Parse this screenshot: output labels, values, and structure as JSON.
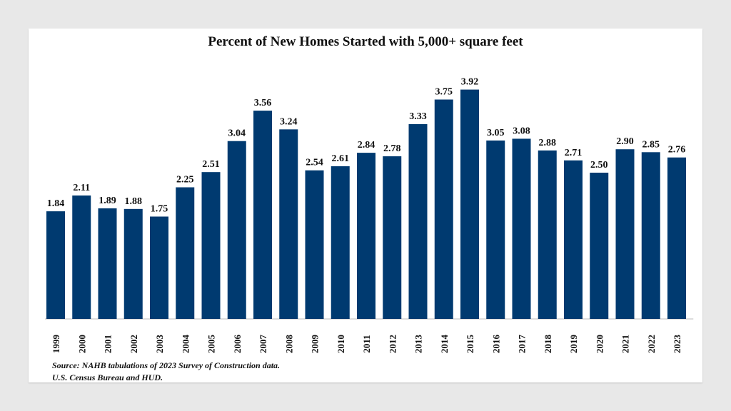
{
  "chart_data": {
    "type": "bar",
    "title": "Percent of New Homes Started with 5,000+ square  feet",
    "categories": [
      "1999",
      "2000",
      "2001",
      "2002",
      "2003",
      "2004",
      "2005",
      "2006",
      "2007",
      "2008",
      "2009",
      "2010",
      "2011",
      "2012",
      "2013",
      "2014",
      "2015",
      "2016",
      "2017",
      "2018",
      "2019",
      "2020",
      "2021",
      "2022",
      "2023"
    ],
    "values": [
      1.84,
      2.11,
      1.89,
      1.88,
      1.75,
      2.25,
      2.51,
      3.04,
      3.56,
      3.24,
      2.54,
      2.61,
      2.84,
      2.78,
      3.33,
      3.75,
      3.92,
      3.05,
      3.08,
      2.88,
      2.71,
      2.5,
      2.9,
      2.85,
      2.76
    ],
    "value_labels": [
      "1.84",
      "2.11",
      "1.89",
      "1.88",
      "1.75",
      "2.25",
      "2.51",
      "3.04",
      "3.56",
      "3.24",
      "2.54",
      "2.61",
      "2.84",
      "2.78",
      "3.33",
      "3.75",
      "3.92",
      "3.05",
      "3.08",
      "2.88",
      "2.71",
      "2.50",
      "2.90",
      "2.85",
      "2.76"
    ],
    "xlabel": "",
    "ylabel": "",
    "ylim": [
      0,
      4
    ],
    "grid": false,
    "legend": "none",
    "bar_color": "#003a70",
    "source_lines": [
      "Source: NAHB tabulations of 2023 Survey of Construction data.",
      "U.S. Census Bureau and HUD."
    ]
  }
}
